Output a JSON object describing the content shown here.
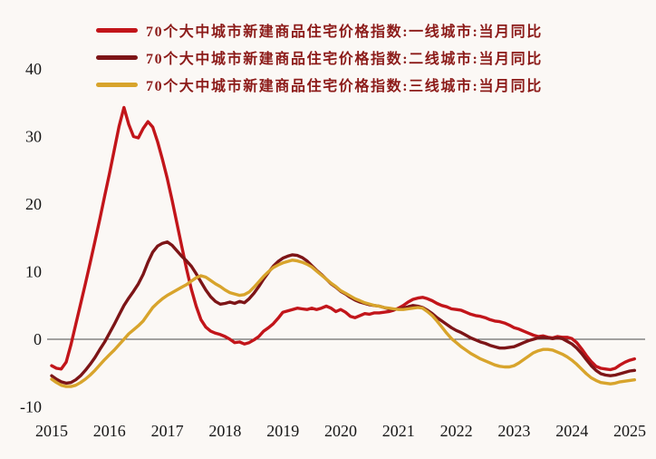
{
  "legend": {
    "items": [
      {
        "id": "first-tier",
        "label": "70个大中城市新建商品住宅价格指数:一线城市:当月同比",
        "color": "#C2151A"
      },
      {
        "id": "second-tier",
        "label": "70个大中城市新建商品住宅价格指数:二线城市:当月同比",
        "color": "#7D1517"
      },
      {
        "id": "third-tier",
        "label": "70个大中城市新建商品住宅价格指数:三线城市:当月同比",
        "color": "#D8A42C"
      }
    ]
  },
  "chart_data": {
    "type": "line",
    "x_start": "2015-01",
    "x_interval": "monthly",
    "x_tick_labels": [
      "2015",
      "2016",
      "2017",
      "2018",
      "2019",
      "2020",
      "2021",
      "2022",
      "2023",
      "2024",
      "2025"
    ],
    "y_ticks": [
      40,
      30,
      20,
      10,
      0,
      -10
    ],
    "ylim": [
      -10,
      40
    ],
    "grid": false,
    "zero_line": true,
    "legend_position": "top-left",
    "ylabel": "",
    "xlabel": "",
    "series": [
      {
        "id": "first-tier",
        "name": "70个大中城市新建商品住宅价格指数:一线城市:当月同比",
        "color": "#C2151A",
        "values": [
          -3.9,
          -4.3,
          -4.4,
          -3.4,
          -0.8,
          2.2,
          5.2,
          8.2,
          11.3,
          14.5,
          17.8,
          21.2,
          24.5,
          28.0,
          31.5,
          34.3,
          31.8,
          30.0,
          29.8,
          31.2,
          32.2,
          31.4,
          29.2,
          26.6,
          23.8,
          20.6,
          17.2,
          13.8,
          10.4,
          7.4,
          4.9,
          2.9,
          1.8,
          1.2,
          0.9,
          0.7,
          0.4,
          0.0,
          -0.5,
          -0.4,
          -0.7,
          -0.5,
          -0.1,
          0.4,
          1.2,
          1.7,
          2.3,
          3.1,
          4.0,
          4.2,
          4.4,
          4.6,
          4.5,
          4.4,
          4.6,
          4.4,
          4.6,
          4.9,
          4.6,
          4.1,
          4.4,
          4.0,
          3.4,
          3.2,
          3.5,
          3.8,
          3.7,
          3.9,
          3.9,
          4.0,
          4.1,
          4.3,
          4.6,
          5.0,
          5.5,
          5.9,
          6.1,
          6.2,
          6.0,
          5.7,
          5.3,
          5.0,
          4.8,
          4.5,
          4.4,
          4.3,
          4.0,
          3.7,
          3.5,
          3.4,
          3.2,
          2.9,
          2.7,
          2.6,
          2.4,
          2.1,
          1.7,
          1.5,
          1.2,
          0.9,
          0.6,
          0.4,
          0.5,
          0.3,
          0.2,
          0.4,
          0.3,
          0.3,
          0.1,
          -0.5,
          -1.4,
          -2.4,
          -3.3,
          -4.0,
          -4.3,
          -4.4,
          -4.5,
          -4.3,
          -3.8,
          -3.4,
          -3.1,
          -2.9
        ]
      },
      {
        "id": "second-tier",
        "name": "70个大中城市新建商品住宅价格指数:二线城市:当月同比",
        "color": "#7D1517",
        "values": [
          -5.4,
          -5.9,
          -6.3,
          -6.5,
          -6.4,
          -6.0,
          -5.4,
          -4.6,
          -3.7,
          -2.7,
          -1.5,
          -0.4,
          0.9,
          2.2,
          3.6,
          5.0,
          6.1,
          7.1,
          8.2,
          9.6,
          11.4,
          12.9,
          13.8,
          14.2,
          14.4,
          13.9,
          13.1,
          12.3,
          11.6,
          10.8,
          9.7,
          8.5,
          7.3,
          6.3,
          5.6,
          5.2,
          5.3,
          5.5,
          5.3,
          5.6,
          5.4,
          6.0,
          6.8,
          7.8,
          8.9,
          9.9,
          10.8,
          11.5,
          12.0,
          12.3,
          12.5,
          12.4,
          12.1,
          11.6,
          10.9,
          10.2,
          9.6,
          8.9,
          8.2,
          7.7,
          7.1,
          6.7,
          6.2,
          5.8,
          5.5,
          5.3,
          5.1,
          5.0,
          4.9,
          4.7,
          4.5,
          4.4,
          4.5,
          4.6,
          4.8,
          5.0,
          4.9,
          4.7,
          4.3,
          3.8,
          3.2,
          2.7,
          2.2,
          1.7,
          1.3,
          1.0,
          0.6,
          0.2,
          -0.1,
          -0.4,
          -0.6,
          -0.9,
          -1.1,
          -1.3,
          -1.3,
          -1.2,
          -1.1,
          -0.8,
          -0.5,
          -0.2,
          0.0,
          0.2,
          0.3,
          0.2,
          0.1,
          0.2,
          0.1,
          -0.3,
          -0.7,
          -1.3,
          -2.1,
          -3.0,
          -3.9,
          -4.6,
          -5.1,
          -5.3,
          -5.4,
          -5.3,
          -5.1,
          -4.9,
          -4.7,
          -4.6
        ]
      },
      {
        "id": "third-tier",
        "name": "70个大中城市新建商品住宅价格指数:三线城市:当月同比",
        "color": "#D8A42C",
        "values": [
          -5.9,
          -6.4,
          -6.8,
          -7.0,
          -7.0,
          -6.8,
          -6.4,
          -5.9,
          -5.3,
          -4.6,
          -3.8,
          -3.0,
          -2.3,
          -1.6,
          -0.8,
          0.0,
          0.8,
          1.4,
          2.0,
          2.7,
          3.7,
          4.7,
          5.4,
          6.0,
          6.5,
          6.9,
          7.3,
          7.7,
          8.1,
          8.6,
          9.1,
          9.4,
          9.2,
          8.7,
          8.2,
          7.8,
          7.3,
          6.9,
          6.7,
          6.5,
          6.6,
          7.0,
          7.7,
          8.5,
          9.3,
          10.0,
          10.6,
          11.0,
          11.3,
          11.5,
          11.7,
          11.6,
          11.4,
          11.1,
          10.7,
          10.1,
          9.5,
          8.9,
          8.3,
          7.8,
          7.2,
          6.8,
          6.4,
          6.0,
          5.7,
          5.4,
          5.2,
          5.0,
          4.9,
          4.7,
          4.6,
          4.5,
          4.4,
          4.4,
          4.5,
          4.6,
          4.7,
          4.6,
          4.1,
          3.5,
          2.7,
          1.8,
          0.9,
          0.1,
          -0.5,
          -1.1,
          -1.6,
          -2.1,
          -2.5,
          -2.9,
          -3.2,
          -3.5,
          -3.8,
          -4.0,
          -4.1,
          -4.1,
          -3.9,
          -3.5,
          -3.0,
          -2.5,
          -2.0,
          -1.7,
          -1.5,
          -1.5,
          -1.6,
          -1.9,
          -2.2,
          -2.6,
          -3.1,
          -3.7,
          -4.4,
          -5.1,
          -5.7,
          -6.1,
          -6.4,
          -6.5,
          -6.6,
          -6.5,
          -6.3,
          -6.2,
          -6.1,
          -6.0
        ]
      }
    ]
  },
  "colors": {
    "background": "#FBF8F5",
    "legend_text": "#8C1B19",
    "axis_text": "#161616",
    "zero_line": "#4A4A4A"
  }
}
